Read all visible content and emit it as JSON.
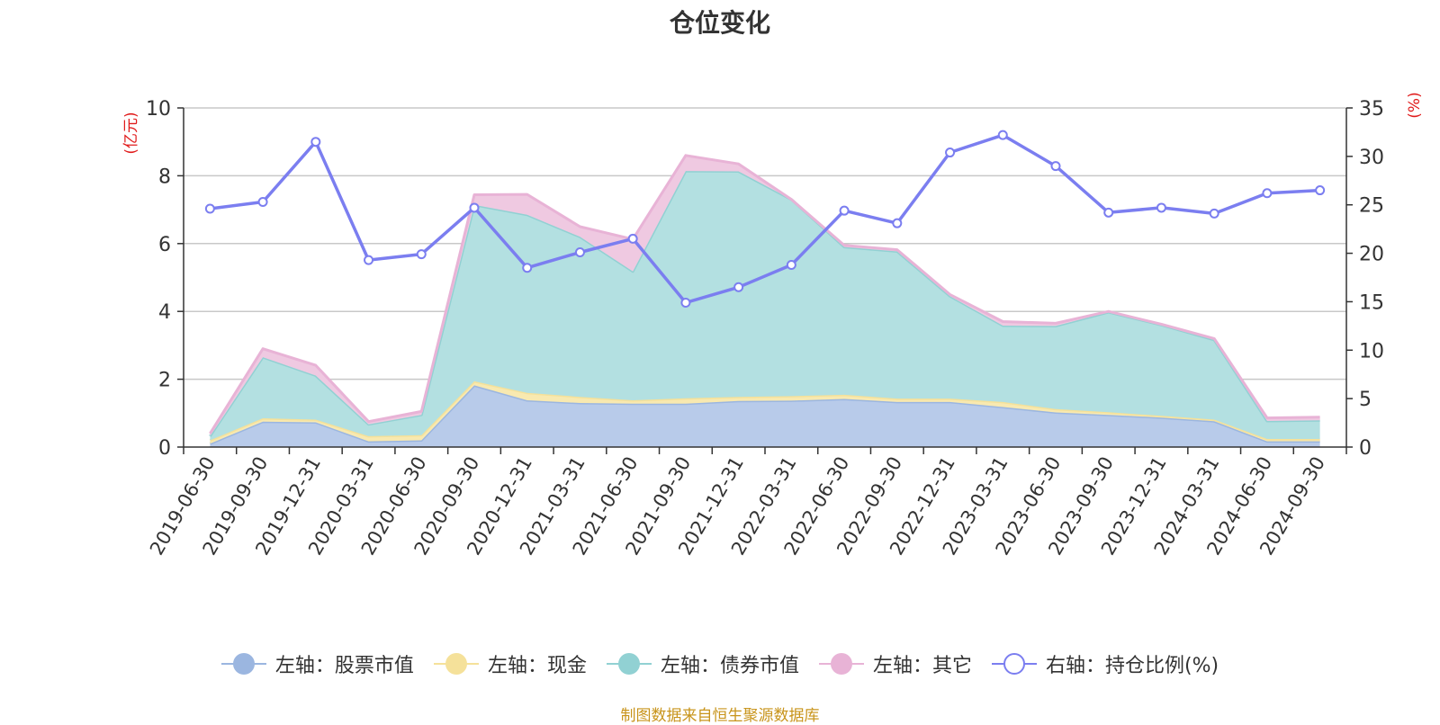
{
  "chart_data": {
    "type": "area",
    "title": "仓位变化",
    "left_axis_label": "(亿元)",
    "right_axis_label": "(%)",
    "left_ylim": [
      0,
      10
    ],
    "left_ticks": [
      0,
      2,
      4,
      6,
      8,
      10
    ],
    "right_ylim": [
      0,
      35
    ],
    "right_ticks": [
      0,
      5,
      10,
      15,
      20,
      25,
      30,
      35
    ],
    "grid": true,
    "legend_position": "bottom",
    "categories": [
      "2019-06-30",
      "2019-09-30",
      "2019-12-31",
      "2020-03-31",
      "2020-06-30",
      "2020-09-30",
      "2020-12-31",
      "2021-03-31",
      "2021-06-30",
      "2021-09-30",
      "2021-12-31",
      "2022-03-31",
      "2022-06-30",
      "2022-09-30",
      "2022-12-31",
      "2023-03-31",
      "2023-06-30",
      "2023-09-30",
      "2023-12-31",
      "2024-03-31",
      "2024-06-30",
      "2024-09-30"
    ],
    "stacked_series": [
      {
        "name": "左轴：股票市值",
        "axis": "left",
        "color": "#9bb6e0",
        "fill": "#b8cbea",
        "values": [
          0.1,
          0.75,
          0.73,
          0.17,
          0.2,
          1.82,
          1.38,
          1.3,
          1.28,
          1.28,
          1.36,
          1.37,
          1.42,
          1.33,
          1.33,
          1.18,
          1.02,
          0.95,
          0.87,
          0.76,
          0.17,
          0.17
        ]
      },
      {
        "name": "左轴：现金",
        "axis": "left",
        "color": "#f5e19a",
        "fill": "#f8e9b0",
        "values": [
          0.1,
          0.1,
          0.08,
          0.15,
          0.15,
          0.12,
          0.22,
          0.18,
          0.1,
          0.16,
          0.12,
          0.13,
          0.12,
          0.1,
          0.1,
          0.15,
          0.1,
          0.08,
          0.05,
          0.05,
          0.07,
          0.07
        ]
      },
      {
        "name": "左轴：债券市值",
        "axis": "left",
        "color": "#91d1d3",
        "fill": "#b3e0e1",
        "values": [
          0.12,
          1.8,
          1.3,
          0.35,
          0.6,
          5.2,
          5.25,
          4.72,
          3.8,
          6.7,
          6.65,
          5.8,
          4.36,
          4.34,
          3.02,
          2.25,
          2.45,
          2.95,
          2.68,
          2.35,
          0.53,
          0.55
        ]
      },
      {
        "name": "左轴：其它",
        "axis": "left",
        "color": "#e8b3d6",
        "fill": "#efc9e1",
        "values": [
          0.08,
          0.25,
          0.3,
          0.08,
          0.1,
          0.3,
          0.6,
          0.3,
          0.95,
          0.46,
          0.22,
          0.0,
          0.05,
          0.05,
          0.05,
          0.12,
          0.08,
          0.02,
          0.02,
          0.04,
          0.09,
          0.09
        ]
      }
    ],
    "line_series": {
      "name": "右轴：持仓比例(%)",
      "axis": "right",
      "color": "#7b7ef0",
      "values": [
        24.6,
        25.3,
        31.5,
        19.3,
        19.9,
        24.7,
        18.5,
        20.1,
        21.5,
        14.9,
        16.5,
        18.8,
        24.4,
        23.1,
        30.4,
        32.2,
        29.0,
        24.2,
        24.7,
        24.1,
        26.2,
        26.5
      ]
    }
  },
  "legend": [
    {
      "label": "左轴：股票市值",
      "color": "#9bb6e0",
      "hollow": false
    },
    {
      "label": "左轴：现金",
      "color": "#f5e19a",
      "hollow": false
    },
    {
      "label": "左轴：债券市值",
      "color": "#91d1d3",
      "hollow": false
    },
    {
      "label": "左轴：其它",
      "color": "#e8b3d6",
      "hollow": false
    },
    {
      "label": "右轴：持仓比例(%)",
      "color": "#7b7ef0",
      "hollow": true
    }
  ],
  "footer": "制图数据来自恒生聚源数据库"
}
